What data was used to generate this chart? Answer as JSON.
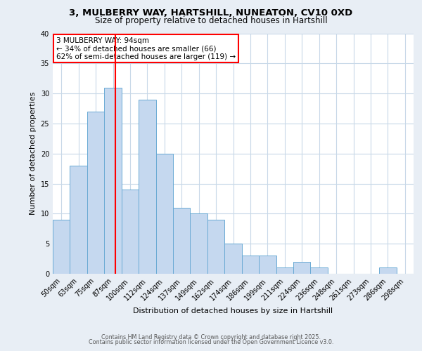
{
  "title_line1": "3, MULBERRY WAY, HARTSHILL, NUNEATON, CV10 0XD",
  "title_line2": "Size of property relative to detached houses in Hartshill",
  "xlabel": "Distribution of detached houses by size in Hartshill",
  "ylabel": "Number of detached properties",
  "bar_labels": [
    "50sqm",
    "63sqm",
    "75sqm",
    "87sqm",
    "100sqm",
    "112sqm",
    "124sqm",
    "137sqm",
    "149sqm",
    "162sqm",
    "174sqm",
    "186sqm",
    "199sqm",
    "211sqm",
    "224sqm",
    "236sqm",
    "248sqm",
    "261sqm",
    "273sqm",
    "286sqm",
    "298sqm"
  ],
  "bar_values": [
    9,
    18,
    27,
    31,
    14,
    29,
    20,
    11,
    10,
    9,
    5,
    3,
    3,
    1,
    2,
    1,
    0,
    0,
    0,
    1,
    0
  ],
  "bar_color": "#c5d8ef",
  "bar_edgecolor": "#6aaad4",
  "vline_x_index": 3,
  "vline_color": "red",
  "annotation_text": "3 MULBERRY WAY: 94sqm\n← 34% of detached houses are smaller (66)\n62% of semi-detached houses are larger (119) →",
  "annotation_box_color": "white",
  "annotation_box_edgecolor": "red",
  "ylim": [
    0,
    40
  ],
  "yticks": [
    0,
    5,
    10,
    15,
    20,
    25,
    30,
    35,
    40
  ],
  "footer_line1": "Contains HM Land Registry data © Crown copyright and database right 2025.",
  "footer_line2": "Contains public sector information licensed under the Open Government Licence v3.0.",
  "bg_color": "#e8eef5",
  "plot_bg_color": "#ffffff",
  "grid_color": "#c8d8e8"
}
